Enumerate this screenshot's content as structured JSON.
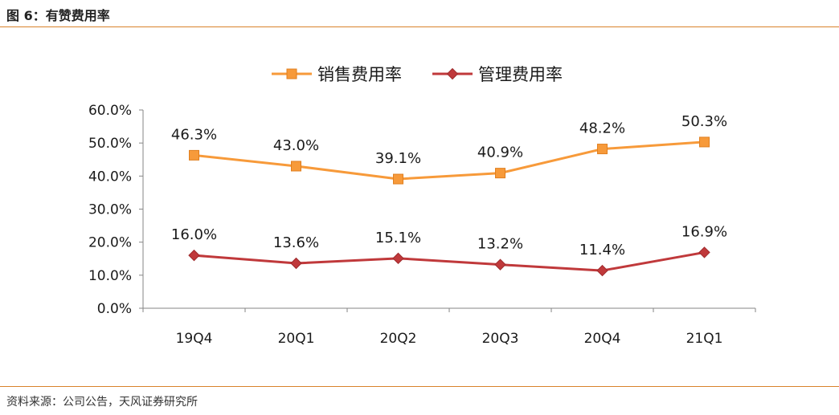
{
  "figure": {
    "title": "图 6：有赞费用率",
    "source": "资料来源：公司公告，天风证券研究所"
  },
  "chart_data": {
    "type": "line",
    "categories": [
      "19Q4",
      "20Q1",
      "20Q2",
      "20Q3",
      "20Q4",
      "21Q1"
    ],
    "ylim": [
      0,
      60
    ],
    "yticks": [
      "0.0%",
      "10.0%",
      "20.0%",
      "30.0%",
      "40.0%",
      "50.0%",
      "60.0%"
    ],
    "grid": false,
    "legend_position": "top-center",
    "series": [
      {
        "name": "销售费用率",
        "values": [
          46.3,
          43.0,
          39.1,
          40.9,
          48.2,
          50.3
        ],
        "labels": [
          "46.3%",
          "43.0%",
          "39.1%",
          "40.9%",
          "48.2%",
          "50.3%"
        ],
        "color": "#f79a3a",
        "marker": "square"
      },
      {
        "name": "管理费用率",
        "values": [
          16.0,
          13.6,
          15.1,
          13.2,
          11.4,
          16.9
        ],
        "labels": [
          "16.0%",
          "13.6%",
          "15.1%",
          "13.2%",
          "11.4%",
          "16.9%"
        ],
        "color": "#c0393b",
        "marker": "diamond"
      }
    ]
  }
}
